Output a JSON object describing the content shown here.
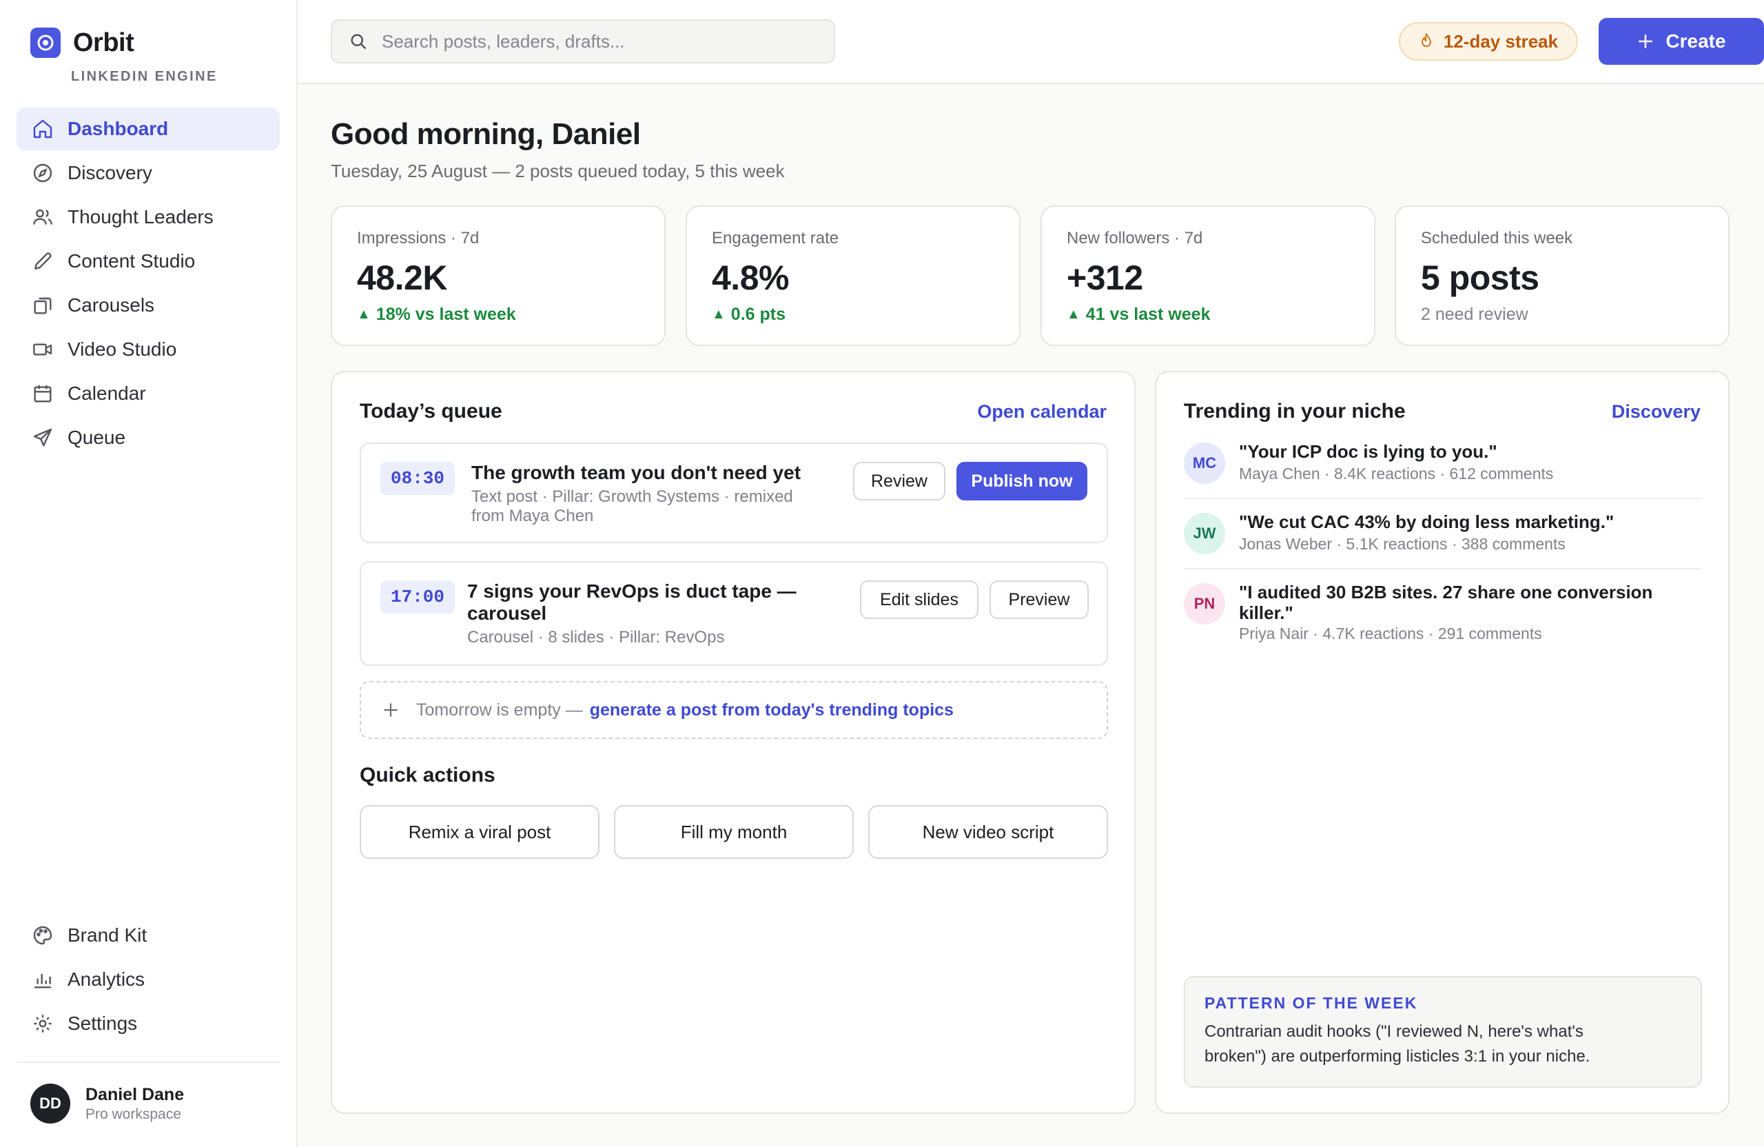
{
  "brand": {
    "name": "Orbit",
    "subtitle": "LINKEDIN ENGINE"
  },
  "nav": {
    "items": [
      {
        "label": "Dashboard",
        "icon": "home-icon",
        "active": true
      },
      {
        "label": "Discovery",
        "icon": "compass-icon"
      },
      {
        "label": "Thought Leaders",
        "icon": "users-icon"
      },
      {
        "label": "Content Studio",
        "icon": "pencil-icon"
      },
      {
        "label": "Carousels",
        "icon": "stack-icon"
      },
      {
        "label": "Video Studio",
        "icon": "video-icon"
      },
      {
        "label": "Calendar",
        "icon": "calendar-icon"
      },
      {
        "label": "Queue",
        "icon": "send-icon"
      }
    ],
    "bottom": [
      {
        "label": "Brand Kit",
        "icon": "palette-icon"
      },
      {
        "label": "Analytics",
        "icon": "bar-chart-icon"
      },
      {
        "label": "Settings",
        "icon": "gear-icon"
      }
    ]
  },
  "user": {
    "initials": "DD",
    "name": "Daniel Dane",
    "plan": "Pro workspace"
  },
  "topbar": {
    "search_placeholder": "Search posts, leaders, drafts...",
    "streak": "12-day streak",
    "create_label": "Create"
  },
  "greeting": {
    "title": "Good morning, Daniel",
    "subtitle": "Tuesday, 25 August — 2 posts queued today, 5 this week"
  },
  "stats": [
    {
      "label": "Impressions · 7d",
      "value": "48.2K",
      "delta": "18% vs last week"
    },
    {
      "label": "Engagement rate",
      "value": "4.8%",
      "delta": "0.6 pts"
    },
    {
      "label": "New followers · 7d",
      "value": "+312",
      "delta": "41 vs last week"
    },
    {
      "label": "Scheduled this week",
      "value": "5 posts",
      "delta": "2 need review"
    }
  ],
  "queue": {
    "title": "Today’s queue",
    "link": "Open calendar",
    "items": [
      {
        "time": "08:30",
        "title": "The growth team you don't need yet",
        "meta_line1": "Text post · Pillar: Growth Systems · remixed",
        "meta_line2": "from Maya Chen",
        "btn1": "Review",
        "btn2": "Publish now"
      },
      {
        "time": "17:00",
        "title_line1": "7 signs your RevOps is duct tape —",
        "title_line2": "carousel",
        "meta": "Carousel · 8 slides · Pillar: RevOps",
        "btn1": "Edit slides",
        "btn2": "Preview"
      }
    ],
    "empty_text": "Tomorrow is empty —",
    "empty_link": "generate a post from today's trending topics"
  },
  "quick_actions": {
    "title": "Quick actions",
    "items": [
      "Remix a viral post",
      "Fill my month",
      "New video script"
    ]
  },
  "trending": {
    "title": "Trending in your niche",
    "link": "Discovery",
    "items": [
      {
        "initials": "MC",
        "title": "\"Your ICP doc is lying to you.\"",
        "meta": "Maya Chen · 8.4K reactions · 612 comments"
      },
      {
        "initials": "JW",
        "title": "\"We cut CAC 43% by doing less marketing.\"",
        "meta": "Jonas Weber · 5.1K reactions · 388 comments"
      },
      {
        "initials": "PN",
        "title_line1": "\"I audited 30 B2B sites. 27 share one conversion",
        "title_line2": "killer.\"",
        "meta": "Priya Nair · 4.7K reactions · 291 comments"
      }
    ],
    "pattern_label": "PATTERN OF THE WEEK",
    "pattern_line1": "Contrarian audit hooks (\"I reviewed N, here's what's",
    "pattern_line2": "broken\") are outperforming listicles 3:1 in your niche."
  },
  "colors": {
    "accent": "#4a55e0",
    "positive": "#1b8a3e",
    "streak": "#b9590e"
  }
}
